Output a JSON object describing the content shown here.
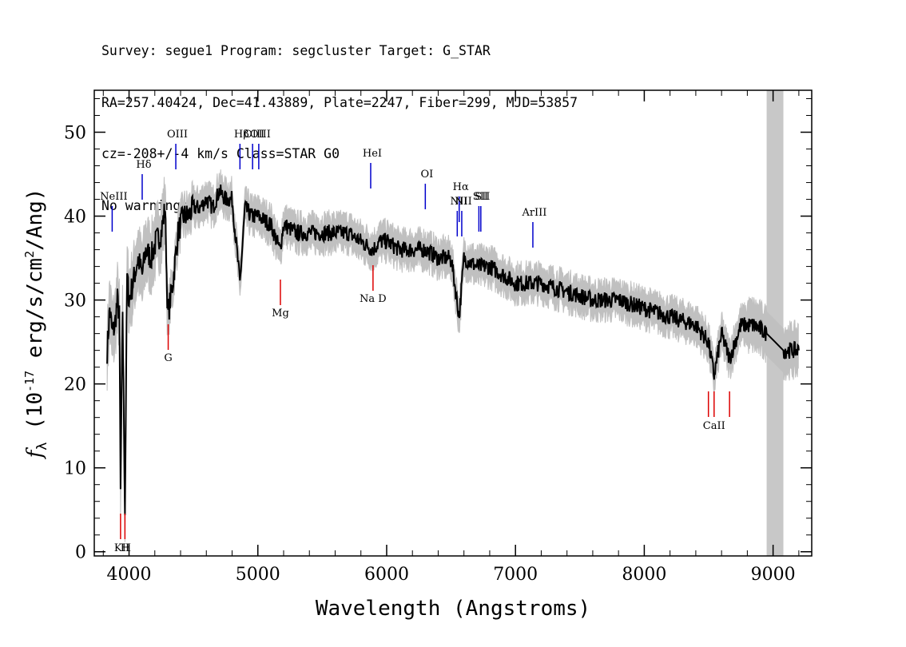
{
  "header": {
    "line1": "Survey: segue1 Program: segcluster Target: G_STAR",
    "line2": "RA=257.40424, Dec=41.43889, Plate=2247, Fiber=299, MJD=53857",
    "line3": "cz=-208+/-4 km/s Class=STAR G0",
    "line4": "No warnings."
  },
  "chart_data": {
    "type": "line",
    "title": "",
    "xlabel": "Wavelength (Angstroms)",
    "ylabel": "f_λ (10^-17 erg/s/cm^2/Ang)",
    "xlim": [
      3730,
      9300
    ],
    "ylim": [
      -0.5,
      55
    ],
    "x_ticks": [
      4000,
      5000,
      6000,
      7000,
      8000,
      9000
    ],
    "y_ticks": [
      0,
      10,
      20,
      30,
      40,
      50
    ],
    "masked_region": [
      8950,
      9080
    ],
    "colors": {
      "flux": "#000000",
      "error_band": "#c0c0c0",
      "emission": "#0000cc",
      "absorption": "#dd0000",
      "mask": "#c8c8c8"
    },
    "series": [
      {
        "values_x": [
          3830,
          3850,
          3870,
          3890,
          3910,
          3925,
          3934,
          3950,
          3968,
          3985,
          4000,
          4030,
          4070,
          4102,
          4130,
          4170,
          4210,
          4250,
          4280,
          4300,
          4340,
          4380,
          4420,
          4460,
          4500,
          4550,
          4600,
          4650,
          4700,
          4750,
          4800,
          4861,
          4900,
          4950,
          5000,
          5100,
          5172,
          5200,
          5300,
          5400,
          5500,
          5580,
          5650,
          5700,
          5800,
          5893,
          5950,
          6000,
          6100,
          6200,
          6300,
          6400,
          6500,
          6563,
          6600,
          6700,
          6800,
          6900,
          7000,
          7200,
          7400,
          7600,
          7800,
          8000,
          8200,
          8400,
          8498,
          8542,
          8600,
          8662,
          8750,
          8850,
          8950,
          9080,
          9150,
          9200
        ],
        "values_y": [
          24,
          29,
          26,
          27,
          30,
          28,
          7,
          29,
          5,
          33,
          30,
          32,
          35,
          33,
          36,
          35,
          37,
          38,
          41,
          28,
          32,
          38,
          40,
          40,
          41,
          41,
          42,
          41,
          43,
          42,
          42,
          32,
          41,
          40,
          40,
          39,
          36,
          39,
          38,
          38,
          38,
          38,
          38,
          38,
          37,
          36,
          37,
          37,
          36,
          36,
          36,
          35,
          35,
          28,
          35,
          34,
          34,
          33,
          32,
          32,
          31,
          30,
          30,
          29,
          28,
          27,
          25,
          21,
          26,
          23,
          27,
          27,
          26,
          24,
          24,
          24
        ]
      }
    ],
    "emission_lines": [
      {
        "label": "NeIII",
        "x": 3869
      },
      {
        "label": "Hδ",
        "x": 4102
      },
      {
        "label": "OIII",
        "x": 4363
      },
      {
        "label": "Hβ",
        "x": 4861
      },
      {
        "label": "OIII",
        "x": 4959
      },
      {
        "label": "OIII",
        "x": 5007
      },
      {
        "label": "HeI",
        "x": 5876
      },
      {
        "label": "OI",
        "x": 6300
      },
      {
        "label": "NII",
        "x": 6548
      },
      {
        "label": "Hα",
        "x": 6563
      },
      {
        "label": "NII",
        "x": 6583
      },
      {
        "label": "SII",
        "x": 6716
      },
      {
        "label": "SII",
        "x": 6731
      },
      {
        "label": "ArIII",
        "x": 7135
      }
    ],
    "absorption_lines": [
      {
        "label": "K",
        "x": 3934
      },
      {
        "label": "H",
        "x": 3968
      },
      {
        "label": "G",
        "x": 4304
      },
      {
        "label": "Mg",
        "x": 5175
      },
      {
        "label": "Na D",
        "x": 5894
      },
      {
        "label": "CaII",
        "x": 8498
      },
      {
        "label": "CaII",
        "x": 8542
      },
      {
        "label": "CaII",
        "x": 8662
      }
    ]
  }
}
